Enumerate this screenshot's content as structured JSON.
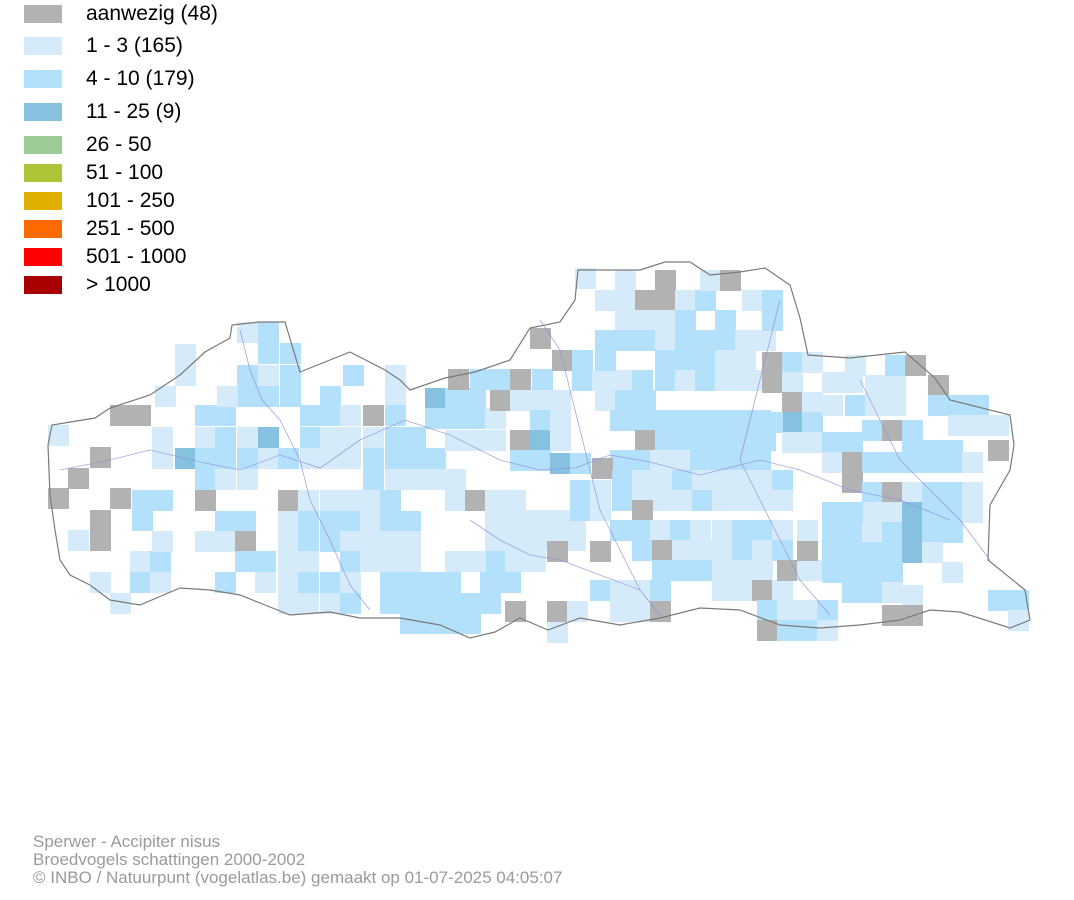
{
  "legend": {
    "items": [
      {
        "label": "aanwezig (48)",
        "color": "#b2b2b2"
      },
      {
        "label": "1 - 3 (165)",
        "color": "#d6ebfa"
      },
      {
        "label": "4 - 10 (179)",
        "color": "#b3e0fa"
      },
      {
        "label": "11 - 25 (9)",
        "color": "#86c1e0"
      },
      {
        "label": "26 - 50",
        "color": "#9ccc96"
      },
      {
        "label": "51 - 100",
        "color": "#adc437"
      },
      {
        "label": "101 - 250",
        "color": "#e0b000"
      },
      {
        "label": "251 - 500",
        "color": "#ff6a00"
      },
      {
        "label": "501 - 1000",
        "color": "#ff0000"
      },
      {
        "label": "> 1000",
        "color": "#a80000"
      }
    ]
  },
  "credits": {
    "species": "Sperwer - Accipiter nisus",
    "dataset": "Broedvogels schattingen 2000-2002",
    "copyright": "© INBO / Natuurpunt (vogelatlas.be) gemaakt op 01-07-2025 04:05:07"
  },
  "colors": {
    "boundary": "#7a7a7a",
    "river": "#8f8fe0"
  }
}
